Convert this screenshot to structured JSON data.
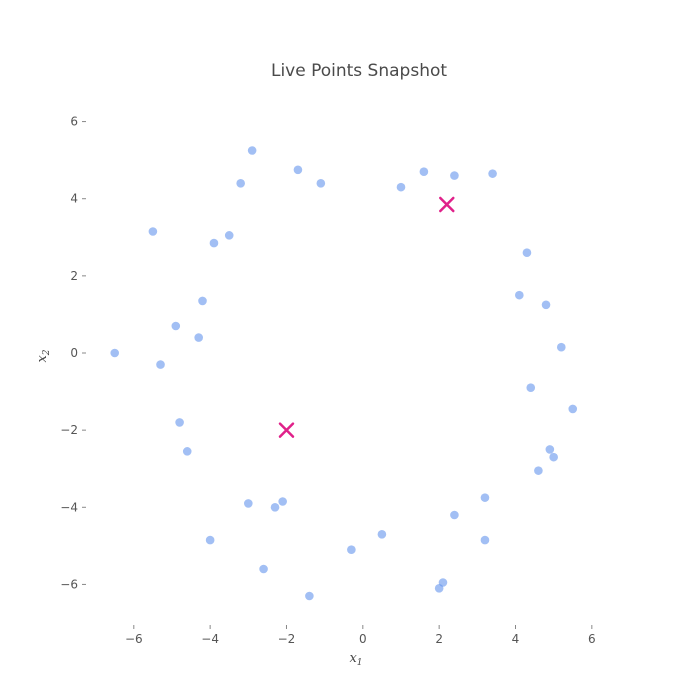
{
  "chart_data": {
    "type": "scatter",
    "title": "Live Points Snapshot",
    "xlabel": "x",
    "xlabel_sub": "1",
    "ylabel": "x",
    "ylabel_sub": "2",
    "xlim": [
      -7.2,
      7.0
    ],
    "ylim": [
      -7.0,
      7.0
    ],
    "xticks": [
      -6,
      -4,
      -2,
      0,
      2,
      4,
      6
    ],
    "yticks": [
      -6,
      -4,
      -2,
      0,
      2,
      4,
      6
    ],
    "xtick_labels": [
      "−6",
      "−4",
      "−2",
      "0",
      "2",
      "4",
      "6"
    ],
    "ytick_labels": [
      "−6",
      "−4",
      "−2",
      "0",
      "2",
      "4",
      "6"
    ],
    "grid": false,
    "point_color": "#6495ed",
    "marker_color": "#e0218a",
    "series": [
      {
        "marker": "circle",
        "points": [
          [
            -6.5,
            0.0
          ],
          [
            -5.5,
            3.15
          ],
          [
            -5.3,
            -0.3
          ],
          [
            -3.2,
            4.4
          ],
          [
            -2.9,
            5.25
          ],
          [
            -2.6,
            -5.6
          ],
          [
            -1.4,
            -6.3
          ],
          [
            2.1,
            -5.95
          ],
          [
            2.0,
            -6.1
          ],
          [
            3.2,
            -4.85
          ],
          [
            -4.0,
            -4.85
          ],
          [
            -3.0,
            -3.9
          ],
          [
            5.5,
            -1.45
          ],
          [
            5.2,
            0.15
          ],
          [
            4.9,
            -2.5
          ],
          [
            3.4,
            4.65
          ],
          [
            2.4,
            4.6
          ],
          [
            1.6,
            4.7
          ],
          [
            -1.7,
            4.75
          ],
          [
            4.8,
            1.25
          ],
          [
            -4.2,
            1.35
          ],
          [
            -4.8,
            -1.8
          ],
          [
            -4.9,
            0.7
          ],
          [
            -2.1,
            -3.85
          ],
          [
            -4.6,
            -2.55
          ],
          [
            -3.9,
            2.85
          ],
          [
            4.6,
            -3.05
          ],
          [
            4.3,
            2.6
          ],
          [
            5.0,
            -2.7
          ],
          [
            -3.5,
            3.05
          ],
          [
            3.2,
            -3.75
          ],
          [
            -1.1,
            4.4
          ],
          [
            1.0,
            4.3
          ],
          [
            -0.3,
            -5.1
          ],
          [
            0.5,
            -4.7
          ],
          [
            2.4,
            -4.2
          ],
          [
            -2.3,
            -4.0
          ],
          [
            4.1,
            1.5
          ],
          [
            -4.3,
            0.4
          ],
          [
            4.4,
            -0.9
          ]
        ]
      },
      {
        "marker": "x",
        "points": [
          [
            2.2,
            3.85
          ],
          [
            -2.0,
            -2.0
          ]
        ]
      }
    ]
  }
}
